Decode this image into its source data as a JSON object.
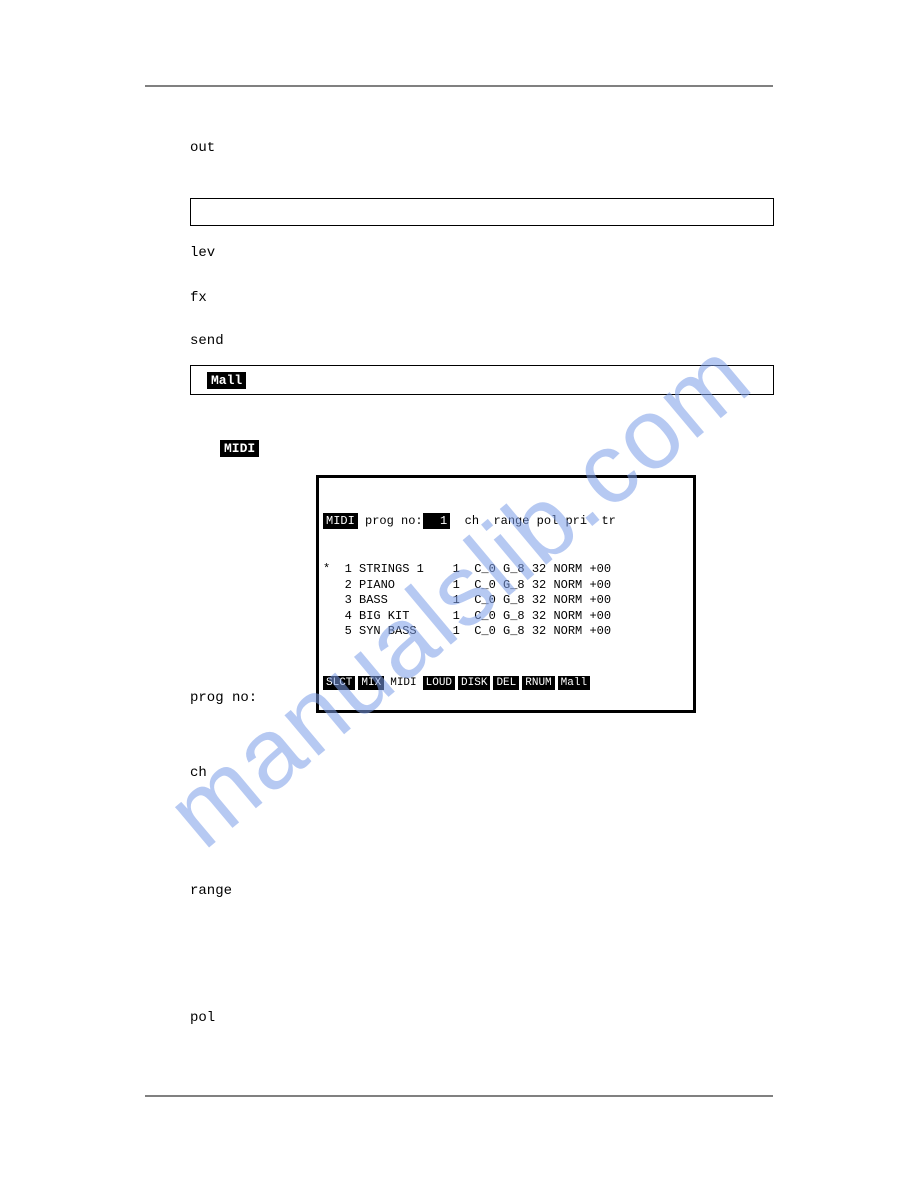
{
  "watermark": "manualslib.com",
  "labels": {
    "out": "out",
    "lev": "lev",
    "fx": "fx",
    "send": "send",
    "mall_box": "Mall",
    "midi_heading": "MIDI",
    "prog_no": "prog no:",
    "ch": "ch",
    "range": "range",
    "pol": "pol"
  },
  "midi_screen": {
    "header": {
      "label_midi": "MIDI",
      "prog_no_text": "prog no:",
      "prog_no_value": "  1",
      "columns": "ch  range pol pri  tr"
    },
    "rows": [
      {
        "marker": "*",
        "num": "1",
        "name": "STRINGS 1",
        "ch": "1",
        "range": "C_0 G_8",
        "pol": "32",
        "pri": "NORM",
        "tr": "+00"
      },
      {
        "marker": " ",
        "num": "2",
        "name": "PIANO",
        "ch": "1",
        "range": "C_0 G_8",
        "pol": "32",
        "pri": "NORM",
        "tr": "+00"
      },
      {
        "marker": " ",
        "num": "3",
        "name": "BASS",
        "ch": "1",
        "range": "C_0 G_8",
        "pol": "32",
        "pri": "NORM",
        "tr": "+00"
      },
      {
        "marker": " ",
        "num": "4",
        "name": "BIG KIT",
        "ch": "1",
        "range": "C_0 G_8",
        "pol": "32",
        "pri": "NORM",
        "tr": "+00"
      },
      {
        "marker": " ",
        "num": "5",
        "name": "SYN BASS",
        "ch": "1",
        "range": "C_0 G_8",
        "pol": "32",
        "pri": "NORM",
        "tr": "+00"
      }
    ],
    "footer": [
      {
        "text": "SLCT",
        "inverted": true
      },
      {
        "text": "MIX",
        "inverted": true
      },
      {
        "text": "MIDI",
        "inverted": false
      },
      {
        "text": "LOUD",
        "inverted": true
      },
      {
        "text": "DISK",
        "inverted": true
      },
      {
        "text": "DEL",
        "inverted": true
      },
      {
        "text": "RNUM",
        "inverted": true
      },
      {
        "text": "Mall",
        "inverted": true
      }
    ]
  },
  "colors": {
    "text": "#000000",
    "rule": "#808080",
    "watermark": "#7c9de8",
    "bg": "#ffffff"
  }
}
